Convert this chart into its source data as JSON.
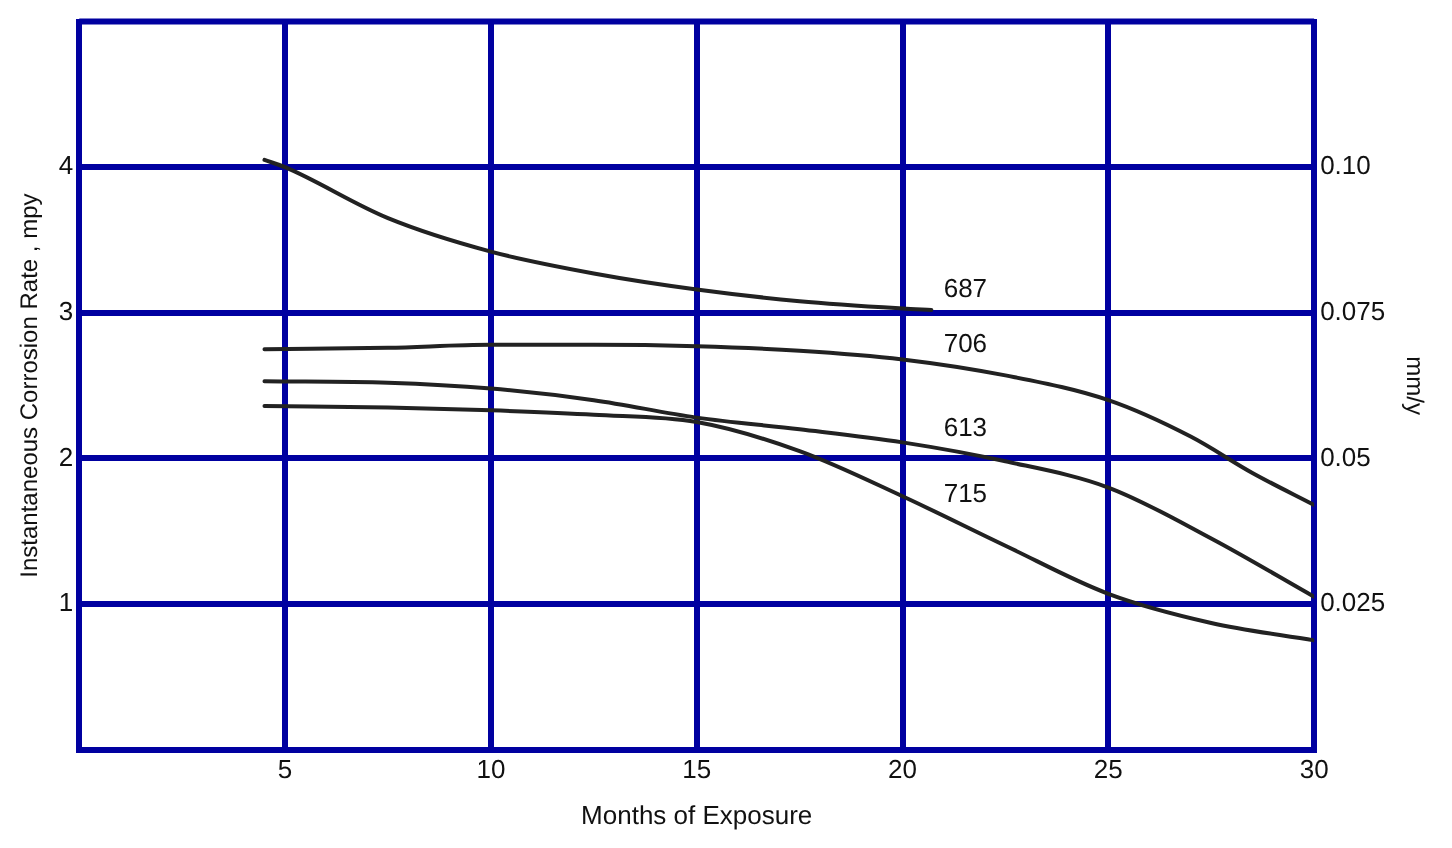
{
  "chart_data": {
    "type": "line",
    "xlabel": "Months of Exposure",
    "ylabel": "Instantaneous Corrosion Rate , mpy",
    "y2label": "mm/y",
    "xlim": [
      0,
      30
    ],
    "xticks": [
      5,
      10,
      15,
      20,
      25,
      30
    ],
    "ylim": [
      0,
      5
    ],
    "yticks": [
      1,
      2,
      3,
      4
    ],
    "y2lim": [
      0,
      0.125
    ],
    "y2ticks": [
      0.025,
      0.05,
      0.075,
      {
        "value": 0.1,
        "label": "0.10"
      }
    ],
    "grid": true,
    "legend": false,
    "marker": "none",
    "line_style": "solid",
    "series": [
      {
        "name": "687",
        "color": "#222222",
        "x": [
          4.5,
          5,
          7.5,
          10,
          12.5,
          15,
          17.5,
          20,
          20.7
        ],
        "values": [
          4.05,
          4.0,
          3.65,
          3.42,
          3.27,
          3.16,
          3.08,
          3.03,
          3.02
        ]
      },
      {
        "name": "706",
        "color": "#222222",
        "x": [
          4.5,
          7.5,
          10,
          12.5,
          15,
          17.5,
          20,
          22.5,
          25,
          27,
          28.5,
          30
        ],
        "values": [
          2.75,
          2.76,
          2.78,
          2.78,
          2.77,
          2.74,
          2.68,
          2.57,
          2.4,
          2.15,
          1.9,
          1.68
        ]
      },
      {
        "name": "613",
        "color": "#222222",
        "x": [
          4.5,
          7.5,
          10,
          12.5,
          15,
          17.5,
          20,
          22.5,
          25,
          27.5,
          30
        ],
        "values": [
          2.53,
          2.52,
          2.48,
          2.4,
          2.28,
          2.2,
          2.11,
          1.98,
          1.8,
          1.45,
          1.05
        ]
      },
      {
        "name": "715",
        "color": "#222222",
        "x": [
          4.5,
          7.5,
          10,
          12.5,
          15,
          17.5,
          20,
          22.5,
          25,
          27.5,
          30
        ],
        "values": [
          2.36,
          2.35,
          2.33,
          2.3,
          2.25,
          2.05,
          1.74,
          1.4,
          1.07,
          0.87,
          0.75
        ]
      }
    ]
  }
}
